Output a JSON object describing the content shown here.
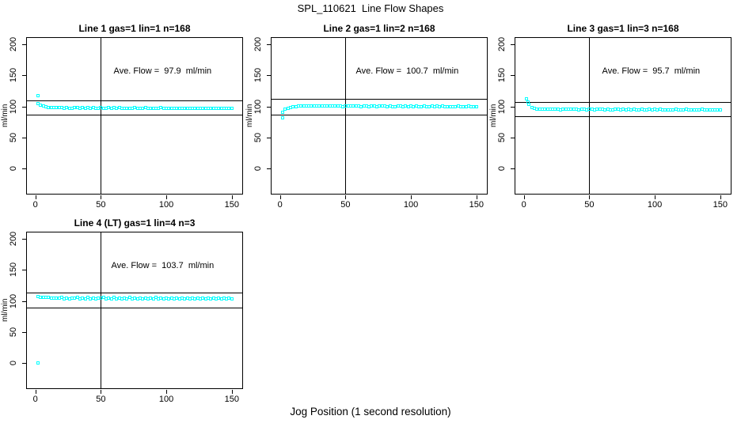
{
  "chart_data": {
    "type": "scatter",
    "title": "SPL_110621  Line Flow Shapes",
    "xlabel": "Jog Position (1 second resolution)",
    "ylabel": "ml/min",
    "point_color": "#00ffff",
    "axis_color": "#000000",
    "x_ticks": [
      0,
      50,
      100,
      150
    ],
    "y_ticks": [
      0,
      50,
      100,
      150,
      200
    ],
    "x_range": [
      -6.5,
      158
    ],
    "y_range": [
      -40,
      210
    ],
    "vline_x": 50,
    "grid": false,
    "panels": [
      {
        "title": "Line 1 gas=1 lin=1 n=168",
        "annotation": "Ave. Flow =  97.9  ml/min",
        "ave_flow_ml_min": 97.9,
        "n": 168,
        "ref_lines_y": [
          109.5,
          87.0
        ],
        "points": [
          [
            2,
            117
          ],
          [
            2,
            104.7
          ],
          [
            4,
            101.9
          ],
          [
            6,
            100.3
          ],
          [
            8,
            99.3
          ],
          [
            10,
            98.6
          ],
          [
            12,
            98.3
          ],
          [
            14,
            98
          ],
          [
            16,
            97.9
          ],
          [
            18,
            97.8
          ],
          [
            20,
            97.9
          ],
          [
            22,
            97.5
          ],
          [
            24,
            98
          ],
          [
            26,
            97.6
          ],
          [
            28,
            97.4
          ],
          [
            30,
            97.8
          ],
          [
            32,
            97.7
          ],
          [
            34,
            97.5
          ],
          [
            36,
            98
          ],
          [
            38,
            97.6
          ],
          [
            40,
            97.8
          ],
          [
            42,
            97.4
          ],
          [
            44,
            97.9
          ],
          [
            46,
            97.5
          ],
          [
            48,
            97.3
          ],
          [
            50,
            97.7
          ],
          [
            52,
            97.6
          ],
          [
            54,
            97.4
          ],
          [
            56,
            97.9
          ],
          [
            58,
            97.5
          ],
          [
            60,
            97.7
          ],
          [
            62,
            97.3
          ],
          [
            64,
            97.8
          ],
          [
            66,
            97.4
          ],
          [
            68,
            97.2
          ],
          [
            70,
            97.6
          ],
          [
            72,
            97.5
          ],
          [
            74,
            97.3
          ],
          [
            76,
            97.8
          ],
          [
            78,
            97.4
          ],
          [
            80,
            97.6
          ],
          [
            82,
            97.2
          ],
          [
            84,
            97.7
          ],
          [
            86,
            97.3
          ],
          [
            88,
            97.1
          ],
          [
            90,
            97.5
          ],
          [
            92,
            97.4
          ],
          [
            94,
            97.2
          ],
          [
            96,
            97.7
          ],
          [
            98,
            97.3
          ],
          [
            100,
            97.5
          ],
          [
            102,
            97.1
          ],
          [
            104,
            97.6
          ],
          [
            106,
            97.2
          ],
          [
            108,
            97
          ],
          [
            110,
            97.4
          ],
          [
            112,
            97.3
          ],
          [
            114,
            97.1
          ],
          [
            116,
            97.6
          ],
          [
            118,
            97.2
          ],
          [
            120,
            97.4
          ],
          [
            122,
            97
          ],
          [
            124,
            97.5
          ],
          [
            126,
            97.1
          ],
          [
            128,
            96.9
          ],
          [
            130,
            97.3
          ],
          [
            132,
            97.2
          ],
          [
            134,
            97
          ],
          [
            136,
            97.5
          ],
          [
            138,
            97.1
          ],
          [
            140,
            97.3
          ],
          [
            142,
            96.9
          ],
          [
            144,
            97.4
          ],
          [
            146,
            97
          ],
          [
            148,
            96.8
          ],
          [
            150,
            97.2
          ]
        ]
      },
      {
        "title": "Line 2 gas=1 lin=2 n=168",
        "annotation": "Ave. Flow =  100.7  ml/min",
        "ave_flow_ml_min": 100.7,
        "n": 168,
        "ref_lines_y": [
          112.5,
          87.5
        ],
        "points": [
          [
            2,
            82
          ],
          [
            2,
            91.1
          ],
          [
            4,
            95.2
          ],
          [
            6,
            97.6
          ],
          [
            8,
            98.9
          ],
          [
            10,
            99.6
          ],
          [
            12,
            100.1
          ],
          [
            14,
            100.3
          ],
          [
            16,
            100.4
          ],
          [
            18,
            100.5
          ],
          [
            20,
            100.8
          ],
          [
            22,
            100.4
          ],
          [
            24,
            100.9
          ],
          [
            26,
            100.5
          ],
          [
            28,
            100.3
          ],
          [
            30,
            100.7
          ],
          [
            32,
            100.6
          ],
          [
            34,
            100.4
          ],
          [
            36,
            100.9
          ],
          [
            38,
            100.5
          ],
          [
            40,
            100.7
          ],
          [
            42,
            100.3
          ],
          [
            44,
            100.8
          ],
          [
            46,
            100.4
          ],
          [
            48,
            100.2
          ],
          [
            50,
            100.6
          ],
          [
            52,
            100.5
          ],
          [
            54,
            100.3
          ],
          [
            56,
            100.8
          ],
          [
            58,
            100.4
          ],
          [
            60,
            100.6
          ],
          [
            62,
            100.2
          ],
          [
            64,
            100.7
          ],
          [
            66,
            100.3
          ],
          [
            68,
            100.1
          ],
          [
            70,
            100.5
          ],
          [
            72,
            100.4
          ],
          [
            74,
            100.2
          ],
          [
            76,
            100.7
          ],
          [
            78,
            100.3
          ],
          [
            80,
            100.5
          ],
          [
            82,
            100.1
          ],
          [
            84,
            100.6
          ],
          [
            86,
            100.2
          ],
          [
            88,
            100
          ],
          [
            90,
            100.4
          ],
          [
            92,
            100.3
          ],
          [
            94,
            100.1
          ],
          [
            96,
            100.6
          ],
          [
            98,
            100.2
          ],
          [
            100,
            100.4
          ],
          [
            102,
            100
          ],
          [
            104,
            100.5
          ],
          [
            106,
            100.1
          ],
          [
            108,
            99.9
          ],
          [
            110,
            100.3
          ],
          [
            112,
            100.2
          ],
          [
            114,
            100
          ],
          [
            116,
            100.5
          ],
          [
            118,
            100.1
          ],
          [
            120,
            100.3
          ],
          [
            122,
            99.9
          ],
          [
            124,
            100.4
          ],
          [
            126,
            100
          ],
          [
            128,
            99.8
          ],
          [
            130,
            100.2
          ],
          [
            132,
            100.1
          ],
          [
            134,
            99.9
          ],
          [
            136,
            100.4
          ],
          [
            138,
            100
          ],
          [
            140,
            100.2
          ],
          [
            142,
            99.8
          ],
          [
            144,
            100.3
          ],
          [
            146,
            99.9
          ],
          [
            148,
            99.7
          ],
          [
            150,
            100.1
          ]
        ]
      },
      {
        "title": "Line 3 gas=1 lin=3 n=168",
        "annotation": "Ave. Flow =  95.7  ml/min",
        "ave_flow_ml_min": 95.7,
        "n": 168,
        "ref_lines_y": [
          107.0,
          84.5
        ],
        "points": [
          [
            2,
            112.4
          ],
          [
            3,
            107.5
          ],
          [
            4,
            103
          ],
          [
            6,
            98.8
          ],
          [
            8,
            96.9
          ],
          [
            10,
            96.1
          ],
          [
            12,
            95.7
          ],
          [
            14,
            95.5
          ],
          [
            16,
            95.5
          ],
          [
            18,
            95.4
          ],
          [
            20,
            95.6
          ],
          [
            22,
            95.2
          ],
          [
            24,
            95.7
          ],
          [
            26,
            95.3
          ],
          [
            28,
            95.1
          ],
          [
            30,
            95.5
          ],
          [
            32,
            95.4
          ],
          [
            34,
            95.2
          ],
          [
            36,
            95.7
          ],
          [
            38,
            95.3
          ],
          [
            40,
            95.5
          ],
          [
            42,
            95.1
          ],
          [
            44,
            95.6
          ],
          [
            46,
            95.2
          ],
          [
            48,
            95
          ],
          [
            50,
            95.4
          ],
          [
            52,
            95.3
          ],
          [
            54,
            95.1
          ],
          [
            56,
            95.6
          ],
          [
            58,
            95.2
          ],
          [
            60,
            95.4
          ],
          [
            62,
            95
          ],
          [
            64,
            95.5
          ],
          [
            66,
            95.1
          ],
          [
            68,
            94.9
          ],
          [
            70,
            95.3
          ],
          [
            72,
            95.2
          ],
          [
            74,
            95
          ],
          [
            76,
            95.5
          ],
          [
            78,
            95.1
          ],
          [
            80,
            95.3
          ],
          [
            82,
            94.9
          ],
          [
            84,
            95.4
          ],
          [
            86,
            95
          ],
          [
            88,
            94.8
          ],
          [
            90,
            95.2
          ],
          [
            92,
            95.1
          ],
          [
            94,
            94.9
          ],
          [
            96,
            95.4
          ],
          [
            98,
            95
          ],
          [
            100,
            95.2
          ],
          [
            102,
            94.8
          ],
          [
            104,
            95.3
          ],
          [
            106,
            94.9
          ],
          [
            108,
            94.7
          ],
          [
            110,
            95.1
          ],
          [
            112,
            95
          ],
          [
            114,
            94.8
          ],
          [
            116,
            95.3
          ],
          [
            118,
            94.9
          ],
          [
            120,
            95.1
          ],
          [
            122,
            94.7
          ],
          [
            124,
            95.2
          ],
          [
            126,
            94.8
          ],
          [
            128,
            94.6
          ],
          [
            130,
            95
          ],
          [
            132,
            94.9
          ],
          [
            134,
            94.7
          ],
          [
            136,
            95.2
          ],
          [
            138,
            94.8
          ],
          [
            140,
            95
          ],
          [
            142,
            94.6
          ],
          [
            144,
            95.1
          ],
          [
            146,
            94.7
          ],
          [
            148,
            94.5
          ],
          [
            150,
            94.9
          ]
        ]
      },
      {
        "title": "Line 4 (LT) gas=1 lin=4 n=3",
        "annotation": "Ave. Flow =  103.7  ml/min",
        "ave_flow_ml_min": 103.7,
        "n": 3,
        "ref_lines_y": [
          113.5,
          89.5
        ],
        "points": [
          [
            2,
            0
          ],
          [
            2,
            107
          ],
          [
            4,
            106.3
          ],
          [
            6,
            106
          ],
          [
            8,
            105.4
          ],
          [
            10,
            105.6
          ],
          [
            12,
            104.6
          ],
          [
            14,
            105.2
          ],
          [
            16,
            104.3
          ],
          [
            18,
            105
          ],
          [
            20,
            105.6
          ],
          [
            22,
            103.8
          ],
          [
            24,
            105
          ],
          [
            26,
            103.5
          ],
          [
            28,
            105.3
          ],
          [
            30,
            104.2
          ],
          [
            32,
            105.7
          ],
          [
            34,
            103.9
          ],
          [
            36,
            104.7
          ],
          [
            38,
            103.5
          ],
          [
            40,
            105.5
          ],
          [
            42,
            103.7
          ],
          [
            44,
            104.9
          ],
          [
            46,
            103.4
          ],
          [
            48,
            105.2
          ],
          [
            50,
            104.1
          ],
          [
            52,
            105.6
          ],
          [
            54,
            103.8
          ],
          [
            56,
            104.6
          ],
          [
            58,
            103.4
          ],
          [
            60,
            105.4
          ],
          [
            62,
            103.6
          ],
          [
            64,
            104.8
          ],
          [
            66,
            103.3
          ],
          [
            68,
            105.1
          ],
          [
            70,
            104
          ],
          [
            72,
            105.5
          ],
          [
            74,
            103.7
          ],
          [
            76,
            104.5
          ],
          [
            78,
            103.3
          ],
          [
            80,
            105.3
          ],
          [
            82,
            103.5
          ],
          [
            84,
            104.7
          ],
          [
            86,
            103.2
          ],
          [
            88,
            105
          ],
          [
            90,
            103.9
          ],
          [
            92,
            105.4
          ],
          [
            94,
            103.6
          ],
          [
            96,
            104.4
          ],
          [
            98,
            103.2
          ],
          [
            100,
            105.2
          ],
          [
            102,
            103.4
          ],
          [
            104,
            104.6
          ],
          [
            106,
            103.1
          ],
          [
            108,
            104.9
          ],
          [
            110,
            103.8
          ],
          [
            112,
            105.3
          ],
          [
            114,
            103.5
          ],
          [
            116,
            104.3
          ],
          [
            118,
            103.1
          ],
          [
            120,
            105.1
          ],
          [
            122,
            103.3
          ],
          [
            124,
            104.5
          ],
          [
            126,
            103
          ],
          [
            128,
            104.8
          ],
          [
            130,
            103.7
          ],
          [
            132,
            105.2
          ],
          [
            134,
            103.4
          ],
          [
            136,
            104.2
          ],
          [
            138,
            103
          ],
          [
            140,
            105
          ],
          [
            142,
            103.2
          ],
          [
            144,
            104.4
          ],
          [
            146,
            102.9
          ],
          [
            148,
            104.7
          ],
          [
            150,
            103.6
          ]
        ]
      }
    ]
  }
}
